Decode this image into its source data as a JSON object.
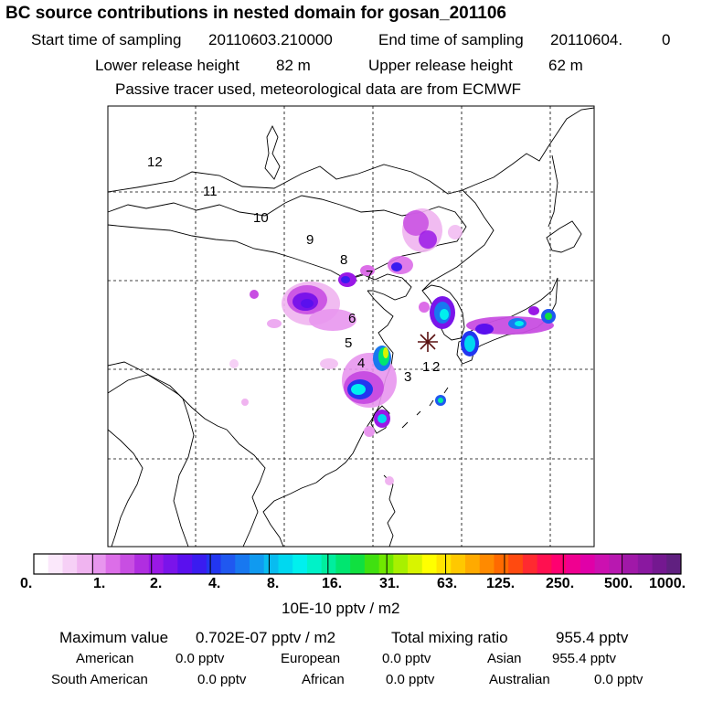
{
  "header": {
    "title": "BC  source contributions in nested domain for gosan_201106",
    "start_label": "Start time of sampling",
    "start_value": "20110603.210000",
    "end_label": "End time of sampling",
    "end_value": "20110604.",
    "end_value2": "0",
    "lower_label": "Lower release height",
    "lower_value": "82 m",
    "upper_label": "Upper release height",
    "upper_value": "62 m",
    "tracer_note": "Passive tracer used, meteorological data are from ECMWF"
  },
  "map": {
    "trajectory_labels": [
      "1",
      "2",
      "3",
      "4",
      "5",
      "6",
      "7",
      "8",
      "9",
      "10",
      "11",
      "12"
    ],
    "receptor_marker": "asterisk",
    "grid": true
  },
  "colorbar": {
    "tick_labels": [
      "0.",
      "1.",
      "2.",
      "4.",
      "8.",
      "16.",
      "31.",
      "63.",
      "125.",
      "250.",
      "500.",
      "1000."
    ],
    "unit": "10E-10 pptv / m2",
    "colors": [
      "#ffffff",
      "#fbe8fb",
      "#f6d0f6",
      "#f0b4f0",
      "#e896ee",
      "#dc6ee8",
      "#c84ee2",
      "#b02ee0",
      "#9a18e6",
      "#7a14ea",
      "#5a10ee",
      "#3a1cf0",
      "#2236f0",
      "#2058f0",
      "#1878f0",
      "#109af0",
      "#08bcf0",
      "#00d8f0",
      "#00f0ee",
      "#00f2c8",
      "#00ee9e",
      "#00e670",
      "#10e040",
      "#40e010",
      "#70e800",
      "#a8f000",
      "#d8f400",
      "#ffff00",
      "#ffe400",
      "#ffc800",
      "#ffaa00",
      "#ff8a00",
      "#ff6a00",
      "#ff4a10",
      "#ff2a30",
      "#ff1050",
      "#ff0070",
      "#f00090",
      "#e000a8",
      "#cc10b0",
      "#b818b0",
      "#a018a8",
      "#8a18a0",
      "#741890",
      "#602080"
    ]
  },
  "summary": {
    "max_label": "Maximum value",
    "max_value": "0.702E-07 pptv / m2",
    "total_label": "Total mixing ratio",
    "total_value": "955.4 pptv",
    "regions": [
      {
        "name": "American",
        "value": "0.0 pptv"
      },
      {
        "name": "European",
        "value": "0.0 pptv"
      },
      {
        "name": "Asian",
        "value": "955.4 pptv"
      },
      {
        "name": "South American",
        "value": "0.0 pptv"
      },
      {
        "name": "African",
        "value": "0.0 pptv"
      },
      {
        "name": "Australian",
        "value": "0.0 pptv"
      }
    ]
  }
}
